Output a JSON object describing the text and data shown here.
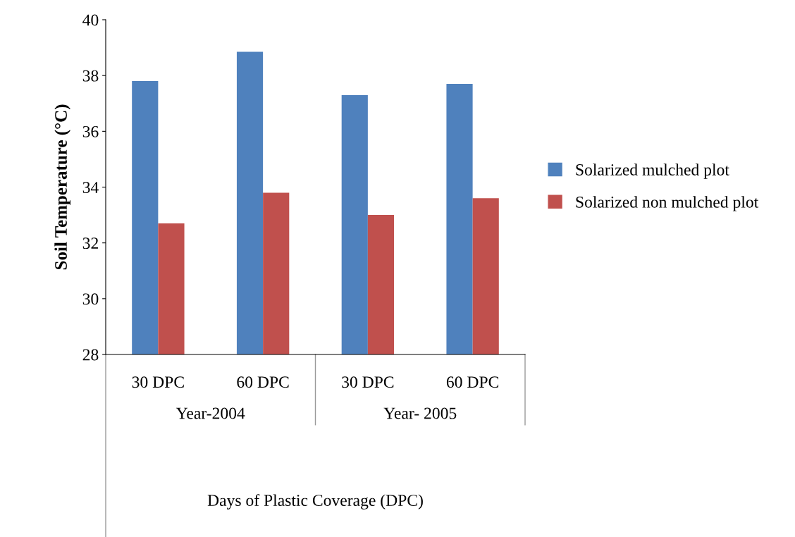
{
  "chart_data": {
    "type": "bar",
    "ylabel": "Soil Temperature (°C)",
    "categories": [
      "30 DPC",
      "60 DPC",
      "30 DPC",
      "60 DPC"
    ],
    "series": [
      {
        "name": "Solarized mulched plot",
        "color": "#4f81bd",
        "values": [
          37.8,
          38.85,
          37.3,
          37.7
        ]
      },
      {
        "name": "Solarized non mulched plot",
        "color": "#c0504d",
        "values": [
          32.7,
          33.8,
          33.0,
          33.6
        ]
      }
    ],
    "ylim": [
      28,
      40
    ],
    "yticks": [
      28,
      30,
      32,
      34,
      36,
      38,
      40
    ],
    "grid": false,
    "legend": "right",
    "annotations": [
      "Year-2004",
      "Year- 2005",
      "Days of Plastic Coverage (DPC)"
    ]
  }
}
